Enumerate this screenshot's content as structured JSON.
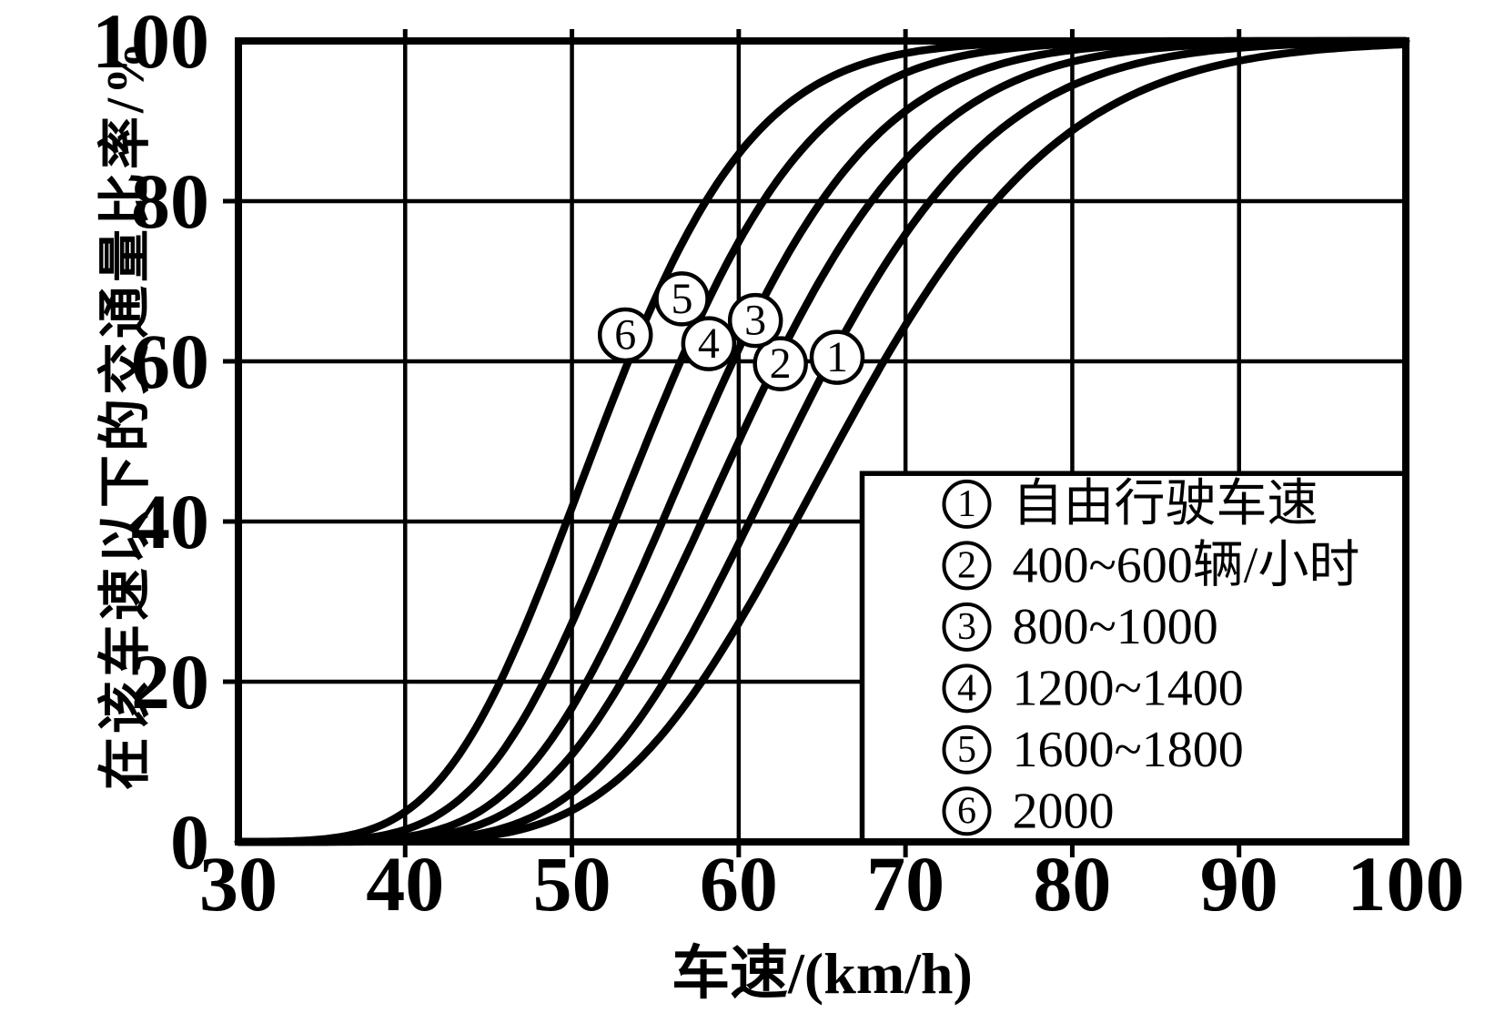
{
  "page": {
    "background": "#ffffff",
    "ink_color": "#000000",
    "description": "Scanned line chart: cumulative distribution of traffic volume below a given speed, for six traffic-flow levels"
  },
  "chart_data": {
    "type": "line",
    "title": "",
    "xlabel": "车速/(km/h)",
    "ylabel": "在该车速以下的交通量比率/%",
    "xlim": [
      30,
      100
    ],
    "ylim": [
      0,
      100
    ],
    "x_ticks": [
      30,
      40,
      50,
      60,
      70,
      80,
      90,
      100
    ],
    "y_ticks": [
      0,
      20,
      40,
      60,
      80,
      100
    ],
    "grid": {
      "shown": true,
      "vertical_every_kmh": 10,
      "horizontal_every_pct": 20
    },
    "legend_position": "inside bottom-right of plot, opaque white box",
    "legend_box": {
      "x_from_kmh": 67.4,
      "x_to_kmh": 100,
      "y_from_pct": 0,
      "y_to_pct": 46
    },
    "curve_model": "percent = 100 * Phi( ln(x / median_kmh) / sigma )  (lognormal CDF, x in km/h)",
    "series": [
      {
        "id": "1",
        "legend_label": "自由行驶车速",
        "median_kmh": 66.0,
        "sigma": 0.158,
        "p01_kmh": 45.7,
        "p10_kmh": 53.9,
        "p50_kmh": 66.0,
        "p90_kmh": 80.8,
        "p99_kmh": 95.3,
        "marker": {
          "num": "1",
          "x_kmh": 65.9,
          "y_pct": 60.5
        }
      },
      {
        "id": "2",
        "legend_label": "400~600辆/小时",
        "median_kmh": 63.0,
        "sigma": 0.15,
        "p01_kmh": 44.3,
        "p10_kmh": 51.9,
        "p50_kmh": 63.0,
        "p90_kmh": 76.4,
        "p99_kmh": 89.2,
        "marker": {
          "num": "2",
          "x_kmh": 62.5,
          "y_pct": 59.7
        }
      },
      {
        "id": "3",
        "legend_label": "800~1000",
        "median_kmh": 60.0,
        "sigma": 0.148,
        "p01_kmh": 42.4,
        "p10_kmh": 49.6,
        "p50_kmh": 60.0,
        "p90_kmh": 72.6,
        "p99_kmh": 84.7,
        "marker": {
          "num": "3",
          "x_kmh": 61.0,
          "y_pct": 65.1
        }
      },
      {
        "id": "4",
        "legend_label": "1200~1400",
        "median_kmh": 57.5,
        "sigma": 0.145,
        "p01_kmh": 40.9,
        "p10_kmh": 47.7,
        "p50_kmh": 57.5,
        "p90_kmh": 69.3,
        "p99_kmh": 80.6,
        "marker": {
          "num": "4",
          "x_kmh": 58.2,
          "y_pct": 62.2
        }
      },
      {
        "id": "5",
        "legend_label": "1600~1800",
        "median_kmh": 54.5,
        "sigma": 0.143,
        "p01_kmh": 38.9,
        "p10_kmh": 45.3,
        "p50_kmh": 54.5,
        "p90_kmh": 65.5,
        "p99_kmh": 76.1,
        "marker": {
          "num": "5",
          "x_kmh": 56.6,
          "y_pct": 67.8
        }
      },
      {
        "id": "6",
        "legend_label": "2000",
        "median_kmh": 51.5,
        "sigma": 0.142,
        "p01_kmh": 36.9,
        "p10_kmh": 42.9,
        "p50_kmh": 51.5,
        "p90_kmh": 61.8,
        "p99_kmh": 71.8,
        "marker": {
          "num": "6",
          "x_kmh": 53.2,
          "y_pct": 63.3
        }
      }
    ]
  }
}
